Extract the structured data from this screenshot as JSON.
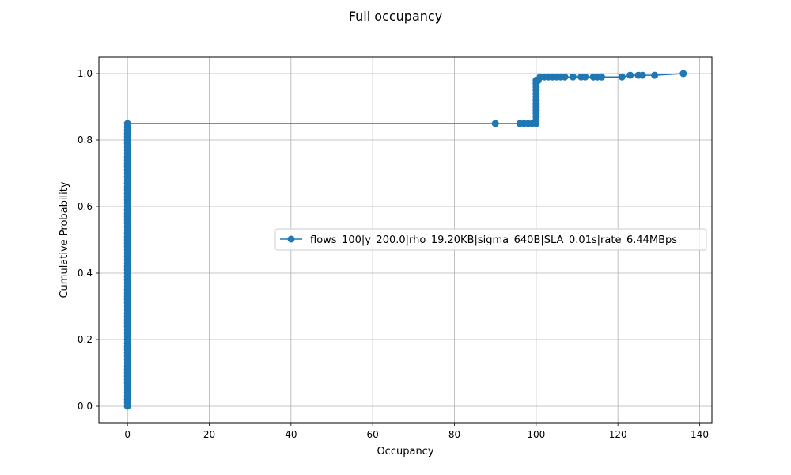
{
  "chart_data": {
    "type": "line",
    "title": "Full occupancy",
    "xlabel": "Occupancy",
    "ylabel": "Cumulative Probability",
    "xlim": [
      -7,
      143
    ],
    "ylim": [
      -0.05,
      1.05
    ],
    "xticks": [
      0,
      20,
      40,
      60,
      80,
      100,
      120,
      140
    ],
    "yticks": [
      0.0,
      0.2,
      0.4,
      0.6,
      0.8,
      1.0
    ],
    "xtick_labels": [
      "0",
      "20",
      "40",
      "60",
      "80",
      "100",
      "120",
      "140"
    ],
    "ytick_labels": [
      "0.0",
      "0.2",
      "0.4",
      "0.6",
      "0.8",
      "1.0"
    ],
    "grid": true,
    "legend_position": "center-right",
    "series": [
      {
        "name": "flows_100|y_200.0|rho_19.20KB|sigma_640B|SLA_0.01s|rate_6.44MBps",
        "color": "#1f77b4",
        "marker": "circle",
        "segments": [
          {
            "x": 0,
            "y_from": 0.0,
            "y_to": 0.85,
            "count": 85
          },
          {
            "x": 100,
            "y_from": 0.85,
            "y_to": 0.97,
            "count": 12
          }
        ],
        "points": [
          {
            "x": 90,
            "y": 0.85
          },
          {
            "x": 96,
            "y": 0.85
          },
          {
            "x": 97,
            "y": 0.85
          },
          {
            "x": 98,
            "y": 0.85
          },
          {
            "x": 99,
            "y": 0.85
          },
          {
            "x": 100,
            "y": 0.98
          },
          {
            "x": 100.5,
            "y": 0.98
          },
          {
            "x": 101,
            "y": 0.99
          },
          {
            "x": 102,
            "y": 0.99
          },
          {
            "x": 103,
            "y": 0.99
          },
          {
            "x": 104,
            "y": 0.99
          },
          {
            "x": 105,
            "y": 0.99
          },
          {
            "x": 106,
            "y": 0.99
          },
          {
            "x": 107,
            "y": 0.99
          },
          {
            "x": 109,
            "y": 0.99
          },
          {
            "x": 111,
            "y": 0.99
          },
          {
            "x": 112,
            "y": 0.99
          },
          {
            "x": 114,
            "y": 0.99
          },
          {
            "x": 115,
            "y": 0.99
          },
          {
            "x": 116,
            "y": 0.99
          },
          {
            "x": 121,
            "y": 0.99
          },
          {
            "x": 123,
            "y": 0.995
          },
          {
            "x": 125,
            "y": 0.995
          },
          {
            "x": 126,
            "y": 0.995
          },
          {
            "x": 129,
            "y": 0.995
          },
          {
            "x": 136,
            "y": 1.0
          }
        ]
      }
    ]
  }
}
